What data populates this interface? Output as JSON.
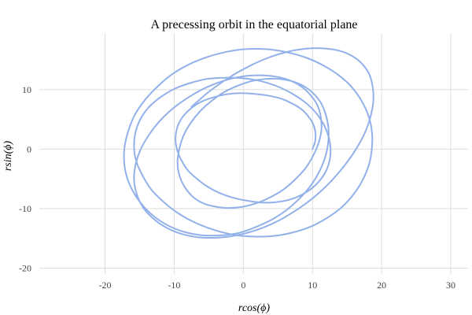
{
  "chart_data": {
    "type": "line",
    "title": "A precessing orbit in the equatorial plane",
    "xlabel": "rcos(ϕ)",
    "ylabel": "rsin(ϕ)",
    "xlim": [
      -29.5,
      32.5
    ],
    "ylim": [
      -21,
      19.5
    ],
    "xticks": [
      -20,
      -10,
      0,
      10,
      20,
      30
    ],
    "yticks": [
      -20,
      -10,
      0,
      10
    ],
    "xtick_labels": [
      "-20",
      "-10",
      "0",
      "10",
      "20",
      "30"
    ],
    "ytick_labels": [
      "-20",
      "-10",
      "0",
      "10"
    ],
    "grid": true,
    "legend": "none",
    "series": [
      {
        "color": "#92b1ea",
        "x": [
          10.0,
          10.38,
          10.42,
          10.1,
          9.4,
          8.4,
          7.0,
          5.4,
          3.5,
          1.5,
          -0.5,
          -2.5,
          -4.3,
          -6.0,
          -7.4,
          -8.5,
          -9.3,
          -9.7,
          -9.8,
          -9.5,
          -8.9,
          -8.0,
          -6.7,
          -5.2,
          -3.4,
          -1.4,
          0.7,
          2.8,
          4.8,
          6.7,
          8.4,
          9.9,
          11.1,
          12.0,
          12.5,
          12.6,
          12.3,
          11.6,
          10.5,
          9.0,
          7.1,
          5.0,
          2.6,
          0.0,
          -2.6,
          -5.2,
          -7.7,
          -10.0,
          -12.0,
          -13.7,
          -14.9,
          -15.6,
          -15.8,
          -15.5,
          -14.6,
          -13.3,
          -11.5,
          -9.4,
          -6.9,
          -4.2,
          -1.4,
          1.5,
          4.4,
          7.2,
          9.8,
          12.2,
          14.3,
          16.0,
          17.3,
          18.2,
          18.6,
          18.6,
          18.1,
          17.1,
          15.7,
          13.8,
          11.5,
          9.0,
          6.2,
          3.3,
          0.3,
          -2.6,
          -5.4,
          -8.1,
          -10.5,
          -12.6,
          -14.4,
          -15.8,
          -16.7,
          -17.2,
          -17.2,
          -16.7,
          -15.7,
          -14.3,
          -12.6,
          -10.6,
          -8.3,
          -5.8,
          -3.3,
          -0.7,
          1.8,
          4.2,
          6.4,
          8.3,
          9.9,
          11.1,
          11.9,
          12.3,
          12.3,
          11.9,
          11.2,
          10.1,
          8.7,
          7.1,
          5.2,
          3.2,
          1.1,
          -0.9,
          -2.9,
          -4.7,
          -6.3,
          -7.6,
          -8.6,
          -9.2,
          -9.5,
          -9.4,
          -8.9,
          -8.1,
          -7.0,
          -5.6,
          -3.9,
          -2.1,
          -0.1,
          1.9,
          3.9,
          5.8,
          7.5,
          9.0,
          10.1,
          10.9,
          11.3,
          11.2,
          10.7,
          9.7,
          8.4,
          6.6,
          4.6,
          2.3,
          -0.2,
          -2.8,
          -5.3,
          -7.8,
          -10.1,
          -12.1,
          -13.7,
          -14.9,
          -15.6,
          -15.8,
          -15.4,
          -14.5,
          -13.1,
          -11.3,
          -9.1,
          -6.6,
          -3.9,
          -1.0,
          1.9,
          4.8,
          7.6,
          10.2,
          12.6,
          14.6,
          16.3,
          17.6,
          18.4,
          18.8,
          18.7,
          18.2,
          17.2,
          15.8,
          14.0,
          11.8,
          9.3,
          6.6,
          3.7,
          0.8,
          -2.1,
          -4.9,
          -7.5
        ],
        "y": [
          0.0,
          1.3,
          2.8,
          4.2,
          5.5,
          6.7,
          7.7,
          8.5,
          9.0,
          9.3,
          9.4,
          9.2,
          8.7,
          8.0,
          7.0,
          5.8,
          4.4,
          2.9,
          1.3,
          -0.4,
          -2.0,
          -3.6,
          -5.0,
          -6.3,
          -7.4,
          -8.2,
          -8.7,
          -9.0,
          -8.9,
          -8.5,
          -7.7,
          -6.6,
          -5.2,
          -3.6,
          -1.8,
          0.2,
          2.2,
          4.2,
          6.1,
          7.8,
          9.3,
          10.5,
          11.4,
          11.9,
          12.0,
          11.8,
          11.1,
          10.1,
          8.7,
          7.0,
          5.0,
          2.8,
          0.4,
          -2.0,
          -4.4,
          -6.8,
          -8.9,
          -10.8,
          -12.4,
          -13.6,
          -14.4,
          -14.7,
          -14.6,
          -14.0,
          -13.0,
          -11.5,
          -9.7,
          -7.5,
          -5.1,
          -2.5,
          0.2,
          2.9,
          5.6,
          8.1,
          10.4,
          12.4,
          14.1,
          15.4,
          16.3,
          16.8,
          16.8,
          16.3,
          15.4,
          14.1,
          12.4,
          10.3,
          8.0,
          5.5,
          2.8,
          0.1,
          -2.6,
          -5.2,
          -7.6,
          -9.8,
          -11.6,
          -13.0,
          -14.0,
          -14.5,
          -14.5,
          -14.1,
          -13.1,
          -11.8,
          -10.1,
          -8.1,
          -5.9,
          -3.5,
          -1.1,
          1.4,
          3.7,
          5.9,
          7.8,
          9.4,
          10.6,
          11.4,
          11.8,
          11.8,
          11.4,
          10.6,
          9.5,
          8.0,
          6.3,
          4.4,
          2.4,
          0.3,
          -1.8,
          -3.7,
          -5.5,
          -7.0,
          -8.3,
          -9.2,
          -9.7,
          -9.9,
          -9.7,
          -9.1,
          -8.1,
          -6.8,
          -5.1,
          -3.2,
          -1.1,
          1.1,
          3.3,
          5.4,
          7.4,
          9.1,
          10.5,
          11.6,
          12.2,
          12.4,
          12.2,
          11.5,
          10.4,
          8.8,
          6.9,
          4.7,
          2.3,
          -0.2,
          -2.7,
          -5.2,
          -7.6,
          -9.8,
          -11.6,
          -13.1,
          -14.2,
          -14.8,
          -14.9,
          -14.5,
          -13.6,
          -12.2,
          -10.3,
          -8.1,
          -5.5,
          -2.8,
          0.0,
          2.8,
          5.5,
          8.1,
          10.5,
          12.6,
          14.3,
          15.6,
          16.5,
          16.9,
          16.9,
          16.4,
          15.4,
          13.9,
          12.0,
          9.7,
          7.1
        ]
      }
    ]
  }
}
